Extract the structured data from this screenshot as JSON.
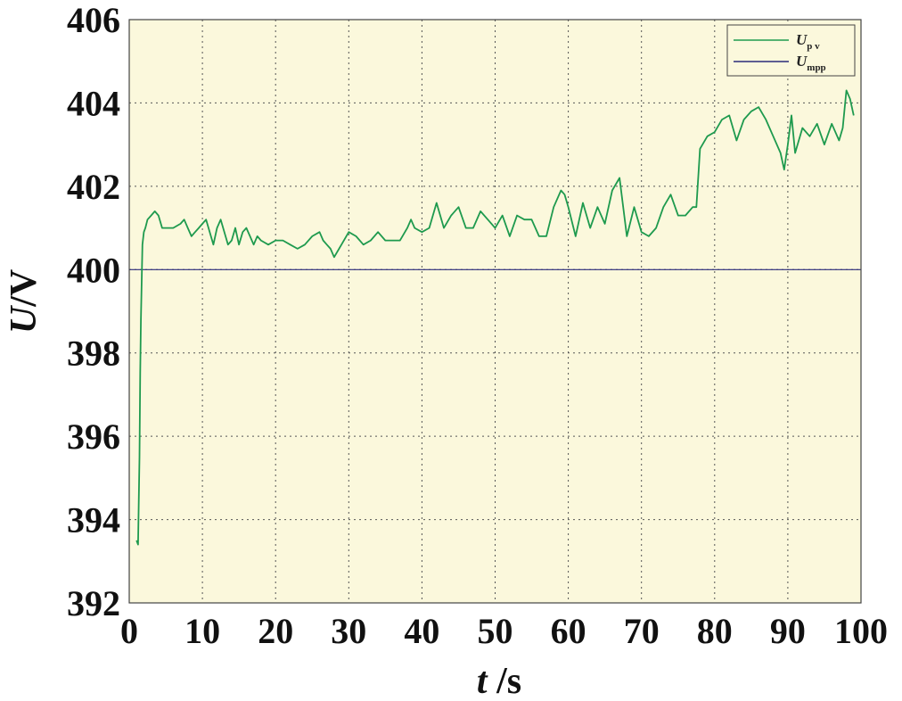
{
  "chart_data": {
    "type": "line",
    "title": "",
    "xlabel": {
      "var": "t",
      "unit": " /s"
    },
    "ylabel": {
      "var": "U",
      "unit": "/V"
    },
    "xlim": [
      0,
      100
    ],
    "ylim": [
      392,
      406
    ],
    "xticks": [
      0,
      10,
      20,
      30,
      40,
      50,
      60,
      70,
      80,
      90,
      100
    ],
    "yticks": [
      392,
      394,
      396,
      398,
      400,
      402,
      404,
      406
    ],
    "grid": true,
    "legend_position": "top-right",
    "background": "#fbf8dc",
    "series": [
      {
        "name": "U_pv",
        "name_main": "U",
        "name_sub": "p v",
        "color": "#1e9a4e",
        "x": [
          1.0,
          1.2,
          1.4,
          1.5,
          1.6,
          1.8,
          2.0,
          2.2,
          2.5,
          3.0,
          3.5,
          4.0,
          4.5,
          5.0,
          6.0,
          7.0,
          7.5,
          8.0,
          8.5,
          9.0,
          9.5,
          10.0,
          10.5,
          11.0,
          11.5,
          12.0,
          12.5,
          13.0,
          13.5,
          14.0,
          14.5,
          15.0,
          15.5,
          16.0,
          16.5,
          17.0,
          17.5,
          18.0,
          19.0,
          20.0,
          21.0,
          22.0,
          23.0,
          24.0,
          25.0,
          26.0,
          26.5,
          27.0,
          27.5,
          28.0,
          29.0,
          30.0,
          31.0,
          32.0,
          33.0,
          34.0,
          35.0,
          36.0,
          37.0,
          38.0,
          38.5,
          39.0,
          40.0,
          41.0,
          42.0,
          43.0,
          44.0,
          45.0,
          46.0,
          47.0,
          48.0,
          49.0,
          50.0,
          51.0,
          52.0,
          53.0,
          54.0,
          55.0,
          56.0,
          57.0,
          58.0,
          59.0,
          59.5,
          60.0,
          61.0,
          62.0,
          63.0,
          64.0,
          65.0,
          66.0,
          67.0,
          68.0,
          69.0,
          70.0,
          71.0,
          72.0,
          73.0,
          74.0,
          75.0,
          76.0,
          77.0,
          77.5,
          78.0,
          79.0,
          80.0,
          81.0,
          82.0,
          83.0,
          84.0,
          85.0,
          86.0,
          87.0,
          88.0,
          89.0,
          89.5,
          90.0,
          90.5,
          91.0,
          92.0,
          93.0,
          94.0,
          95.0,
          96.0,
          97.0,
          97.5,
          98.0,
          98.5,
          99.0
        ],
        "y": [
          393.5,
          393.4,
          395.5,
          397.5,
          398.8,
          400.6,
          400.9,
          401.0,
          401.2,
          401.3,
          401.4,
          401.3,
          401.0,
          401.0,
          401.0,
          401.1,
          401.2,
          401.0,
          400.8,
          400.9,
          401.0,
          401.1,
          401.2,
          400.9,
          400.6,
          401.0,
          401.2,
          400.9,
          400.6,
          400.7,
          401.0,
          400.6,
          400.9,
          401.0,
          400.8,
          400.6,
          400.8,
          400.7,
          400.6,
          400.7,
          400.7,
          400.6,
          400.5,
          400.6,
          400.8,
          400.9,
          400.7,
          400.6,
          400.5,
          400.3,
          400.6,
          400.9,
          400.8,
          400.6,
          400.7,
          400.9,
          400.7,
          400.7,
          400.7,
          401.0,
          401.2,
          401.0,
          400.9,
          401.0,
          401.6,
          401.0,
          401.3,
          401.5,
          401.0,
          401.0,
          401.4,
          401.2,
          401.0,
          401.3,
          400.8,
          401.3,
          401.2,
          401.2,
          400.8,
          400.8,
          401.5,
          401.9,
          401.8,
          401.5,
          400.8,
          401.6,
          401.0,
          401.5,
          401.1,
          401.9,
          402.2,
          400.8,
          401.5,
          400.9,
          400.8,
          401.0,
          401.5,
          401.8,
          401.3,
          401.3,
          401.5,
          401.5,
          402.9,
          403.2,
          403.3,
          403.6,
          403.7,
          403.1,
          403.6,
          403.8,
          403.9,
          403.6,
          403.2,
          402.8,
          402.4,
          403.0,
          403.7,
          402.8,
          403.4,
          403.2,
          403.5,
          403.0,
          403.5,
          403.1,
          403.4,
          404.3,
          404.1,
          403.7
        ]
      },
      {
        "name": "U_mpp",
        "name_main": "U",
        "name_sub": "mpp",
        "color": "#2b2a7a",
        "x": [
          0,
          100
        ],
        "y": [
          400,
          400
        ]
      }
    ]
  }
}
